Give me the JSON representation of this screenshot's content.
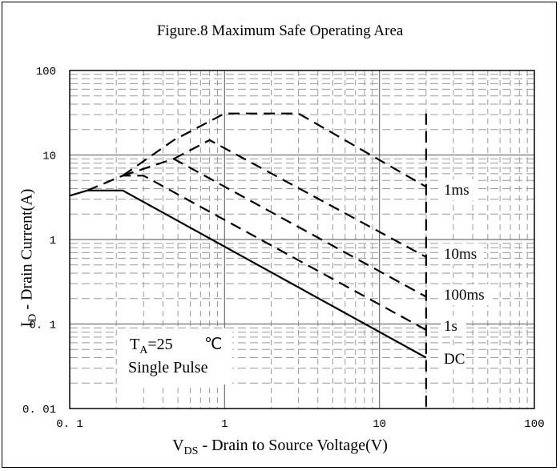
{
  "chart_data": {
    "type": "line",
    "title": "Figure.8 Maximum Safe Operating Area",
    "xlabel": {
      "main": "V",
      "sub": "DS",
      "rest": " - Drain to Source Voltage(V)"
    },
    "ylabel": {
      "main": "I",
      "sub": "D",
      "rest": " - Drain Current(A)"
    },
    "x_scale": "log",
    "y_scale": "log",
    "xlim": [
      0.1,
      100
    ],
    "ylim": [
      0.01,
      100
    ],
    "x_ticks": [
      {
        "value": 0.1,
        "label": "0. 1"
      },
      {
        "value": 1,
        "label": "1"
      },
      {
        "value": 10,
        "label": "10"
      },
      {
        "value": 100,
        "label": "100"
      }
    ],
    "y_ticks": [
      {
        "value": 100,
        "label": "100"
      },
      {
        "value": 10,
        "label": "10"
      },
      {
        "value": 1,
        "label": "1"
      },
      {
        "value": 0.1,
        "label": "0. 1"
      },
      {
        "value": 0.01,
        "label": "0. 01"
      }
    ],
    "grid": true,
    "series": [
      {
        "name": "DC",
        "dash": "solid",
        "points": [
          [
            0.1,
            3.3
          ],
          [
            0.13,
            3.8
          ],
          [
            0.22,
            3.8
          ],
          [
            20,
            0.04
          ]
        ]
      },
      {
        "name": "1s",
        "dash": "dashed",
        "points": [
          [
            0.13,
            3.8
          ],
          [
            0.22,
            5.7
          ],
          [
            0.3,
            5.7
          ],
          [
            20,
            0.085
          ]
        ]
      },
      {
        "name": "100ms",
        "dash": "dashed",
        "points": [
          [
            0.22,
            5.7
          ],
          [
            0.47,
            9.0
          ],
          [
            20,
            0.21
          ]
        ]
      },
      {
        "name": "10ms",
        "dash": "dashed",
        "points": [
          [
            0.47,
            9.0
          ],
          [
            0.8,
            15
          ],
          [
            20,
            0.62
          ]
        ]
      },
      {
        "name": "1ms",
        "dash": "dashed",
        "points": [
          [
            0.22,
            5.7
          ],
          [
            0.47,
            15
          ],
          [
            1,
            31
          ],
          [
            3,
            31
          ],
          [
            20,
            4.2
          ]
        ]
      },
      {
        "name": "Vds limit",
        "dash": "dashed",
        "points": [
          [
            20,
            31
          ],
          [
            20,
            0.01
          ]
        ]
      }
    ],
    "curve_labels": [
      "1ms",
      "10ms",
      "100ms",
      "1s",
      "DC"
    ],
    "annotation": {
      "ta_main": "T",
      "ta_sub": "A",
      "ta_rest": "=25",
      "ta_unit": "℃",
      "pulse": "Single Pulse"
    }
  }
}
